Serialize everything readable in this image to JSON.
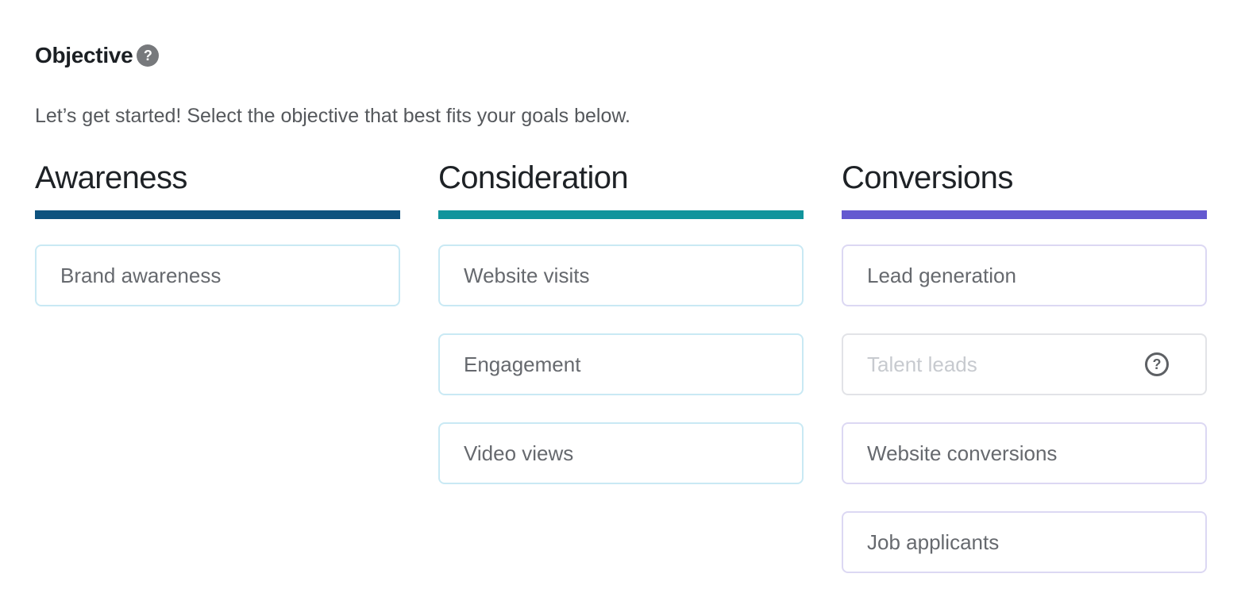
{
  "header": {
    "title": "Objective",
    "help_glyph": "?",
    "subtitle": "Let’s get started! Select the objective that best fits your goals below."
  },
  "columns": [
    {
      "id": "awareness",
      "label": "Awareness",
      "accent_color": "#0e527e",
      "card_border_color": "#c9e9f4",
      "options": [
        {
          "label": "Brand awareness",
          "disabled": false
        }
      ]
    },
    {
      "id": "consideration",
      "label": "Consideration",
      "accent_color": "#10949c",
      "card_border_color": "#c9e9f4",
      "options": [
        {
          "label": "Website visits",
          "disabled": false
        },
        {
          "label": "Engagement",
          "disabled": false
        },
        {
          "label": "Video views",
          "disabled": false
        }
      ]
    },
    {
      "id": "conversions",
      "label": "Conversions",
      "accent_color": "#6459d0",
      "card_border_color": "#dcd8f3",
      "disabled_border_color": "#e2e3e7",
      "options": [
        {
          "label": "Lead generation",
          "disabled": false
        },
        {
          "label": "Talent leads",
          "disabled": true,
          "help_glyph": "?"
        },
        {
          "label": "Website conversions",
          "disabled": false
        },
        {
          "label": "Job applicants",
          "disabled": false
        }
      ]
    }
  ]
}
